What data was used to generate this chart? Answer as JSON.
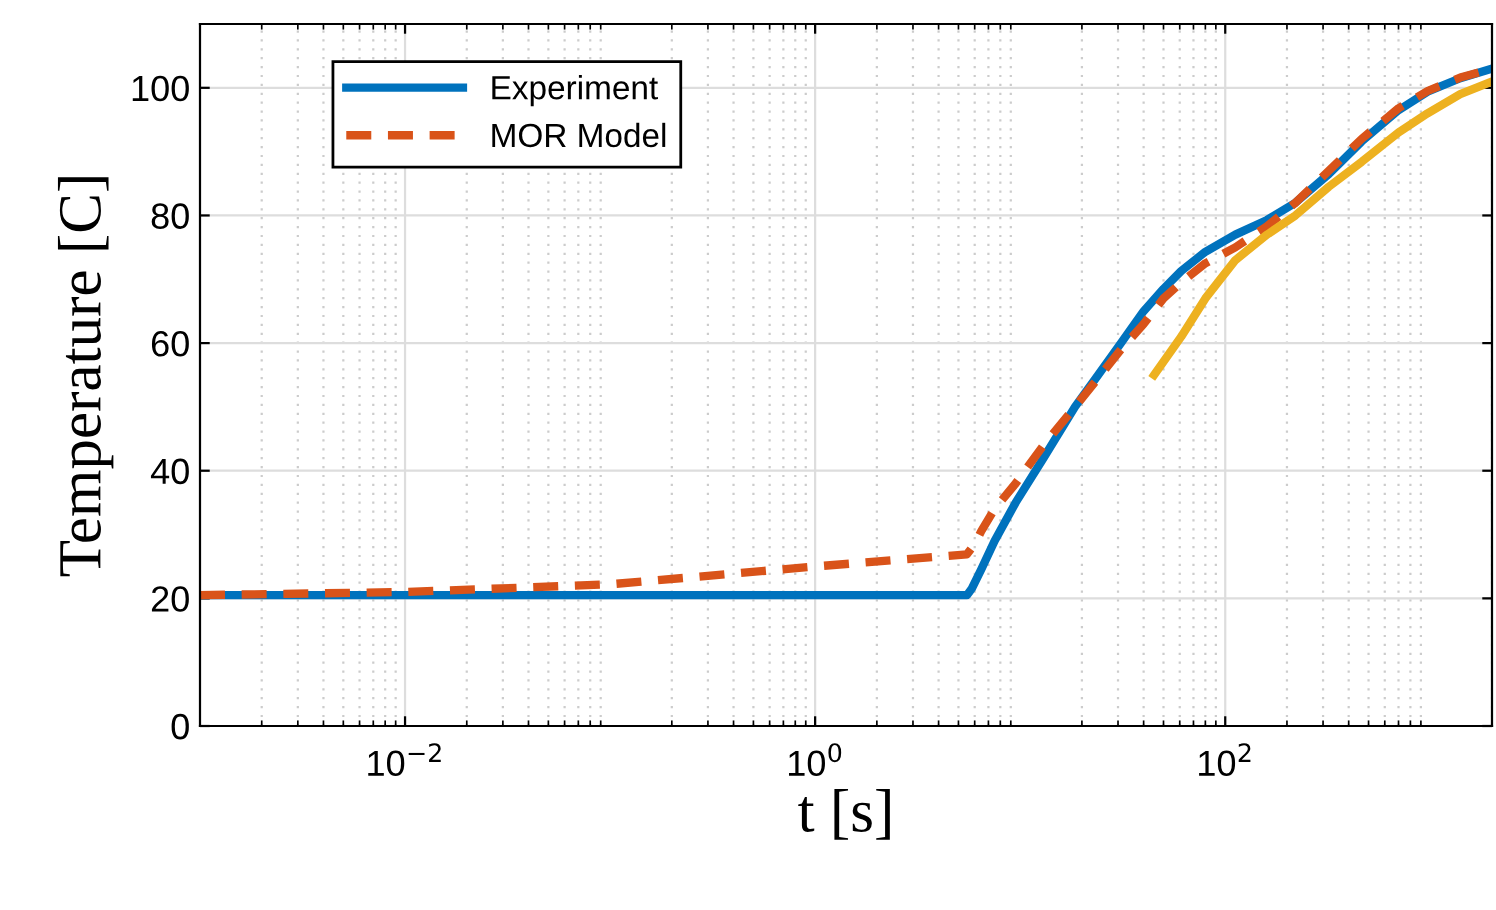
{
  "chart_data": {
    "type": "line",
    "xlabel": "t [s]",
    "ylabel": "Temperature [C]",
    "log": "x",
    "grid": true,
    "legend": "top left",
    "line_style": "solid",
    "xlim": [
      0.001,
      2000
    ],
    "ylim": [
      0,
      110
    ],
    "xticks": [
      {
        "value": 0.01,
        "label": "10$^{−2}$"
      },
      {
        "value": 1,
        "label": "10$^{0}$"
      },
      {
        "value": 100,
        "label": "10$^{2}$"
      }
    ],
    "yticks": [
      0,
      20,
      40,
      60,
      80,
      100
    ],
    "series": [
      {
        "name": "Experiment",
        "color": "#0072bd",
        "x": [
          0.001,
          0.01,
          0.1,
          1,
          5.5,
          5.8,
          6.45,
          7.5,
          9.5,
          13,
          18.5,
          24,
          31,
          40,
          50,
          61,
          80,
          112,
          160,
          220,
          320,
          463,
          700,
          970,
          1400,
          2000
        ],
        "values": [
          20.5,
          20.5,
          20.5,
          20.5,
          20.5,
          21.5,
          24.5,
          29,
          35,
          42,
          50,
          55,
          60,
          65,
          68.5,
          71.3,
          74.3,
          77,
          79.3,
          82,
          86.5,
          91.6,
          96.5,
          99.4,
          101.5,
          103
        ]
      },
      {
        "name": "MOR Model",
        "color": "#d95319",
        "line_style": "dashed",
        "x": [
          0.001,
          0.01,
          0.1,
          1,
          5.5,
          6.0,
          6.45,
          7.5,
          9.5,
          13,
          18.5,
          24,
          31,
          40,
          50,
          61,
          80,
          112,
          160,
          220,
          320,
          463,
          700,
          970,
          1400,
          2000
        ],
        "values": [
          20.5,
          21,
          22.2,
          25,
          26.9,
          28.5,
          30.5,
          34,
          38,
          44,
          50,
          54.5,
          59,
          63,
          67,
          69.5,
          72.5,
          75,
          78.3,
          82,
          87,
          92,
          96.8,
          99.5,
          101.6,
          103
        ]
      },
      {
        "color": "#edb120",
        "x": [
          45,
          61,
          80,
          112,
          160,
          220,
          320,
          463,
          700,
          970,
          1400,
          2000
        ],
        "values": [
          55,
          61,
          67,
          73,
          77,
          80,
          84.5,
          88.4,
          93,
          96,
          99,
          101
        ]
      }
    ]
  }
}
